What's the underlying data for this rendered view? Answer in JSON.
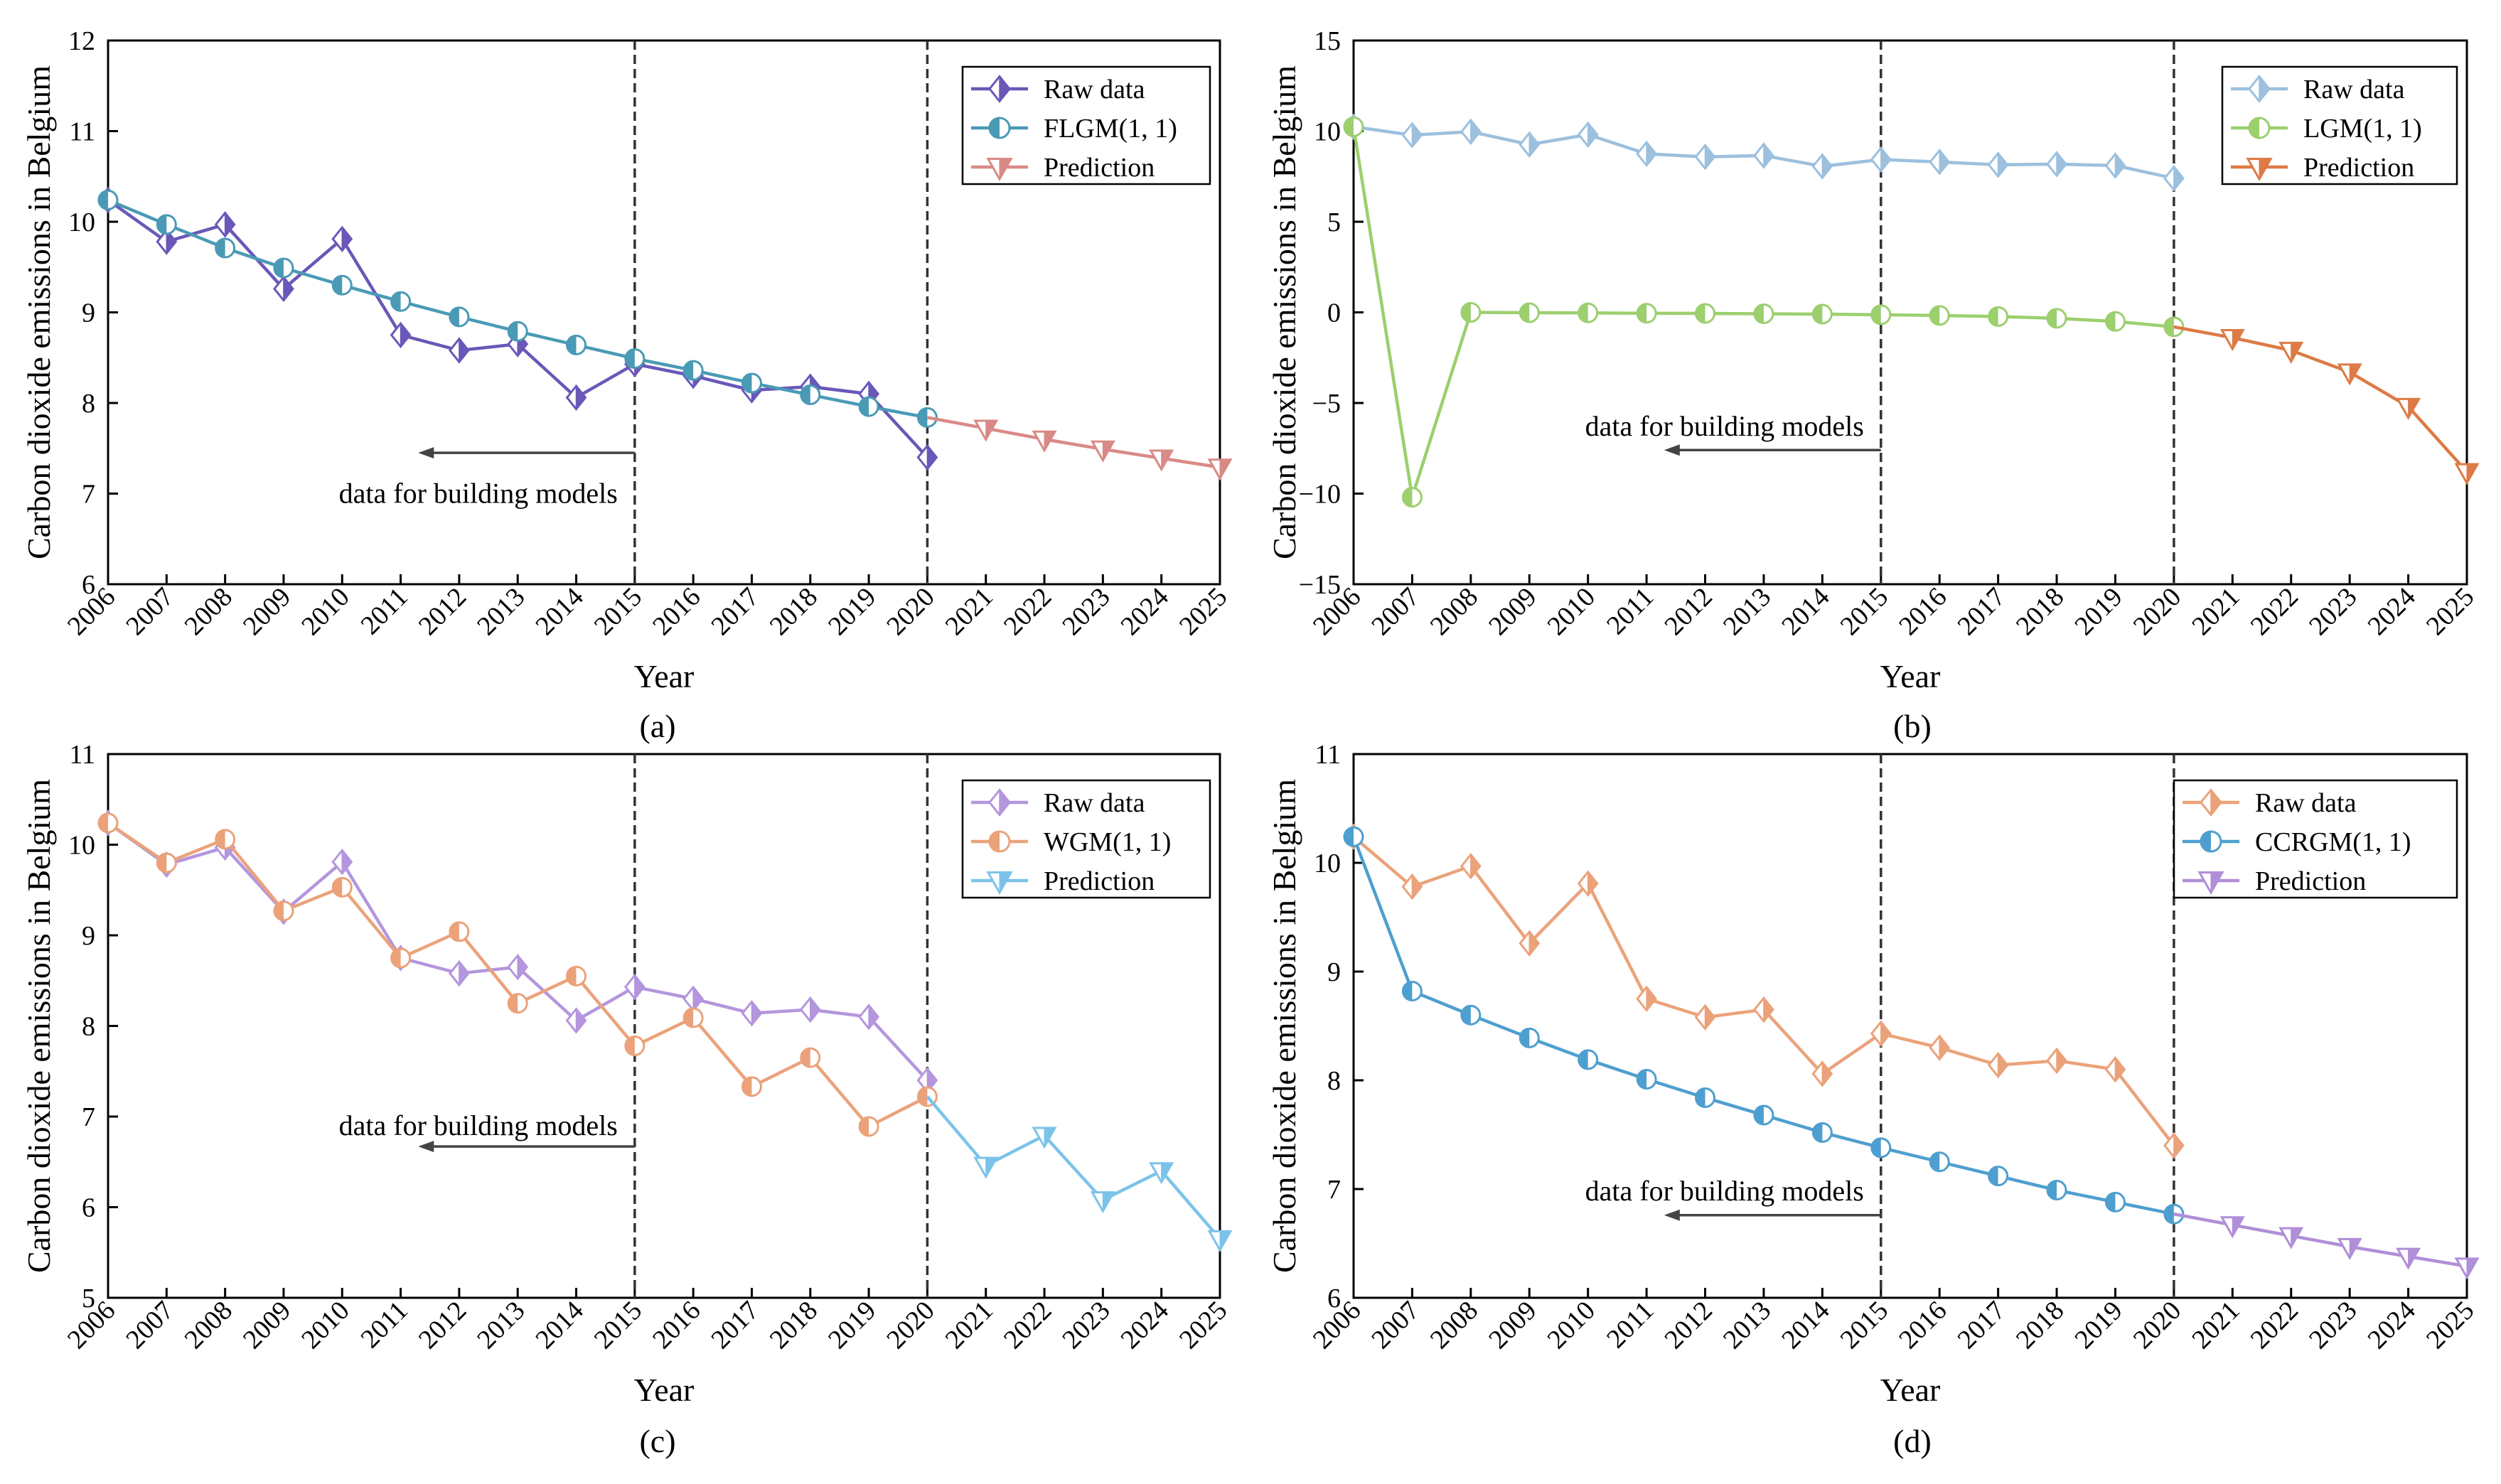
{
  "figure": {
    "panel_labels": [
      "(a)",
      "(b)",
      "(c)",
      "(d)"
    ],
    "annotation": "data for building models"
  },
  "colors": {
    "raw_a": "#6a57b8",
    "flgm": "#4a9ab5",
    "pred_a": "#d98a86",
    "raw_b": "#9cc0de",
    "lgm": "#9ccf6e",
    "pred_b": "#dd7a45",
    "raw_c": "#b496de",
    "wgm": "#eba27a",
    "pred_c": "#7cc3ea",
    "raw_d": "#eba27a",
    "ccrgm": "#4e9fcf",
    "pred_d": "#b08ed8",
    "axis": "#000000",
    "vline": "#333333",
    "arrow": "#444444"
  },
  "chart_data": [
    {
      "type": "line",
      "panel": "(a)",
      "xlabel": "Year",
      "ylabel": "Carbon dioxide emissions in Belgium",
      "xlim": [
        2006,
        2025
      ],
      "ylim": [
        6,
        12
      ],
      "yticks": [
        6,
        7,
        8,
        9,
        10,
        11,
        12
      ],
      "xticks": [
        "2006",
        "2007",
        "2008",
        "2009",
        "2010",
        "2011",
        "2012",
        "2013",
        "2014",
        "2015",
        "2016",
        "2017",
        "2018",
        "2019",
        "2020",
        "2021",
        "2022",
        "2023",
        "2024",
        "2025"
      ],
      "vlines": [
        2015,
        2020
      ],
      "annotation": {
        "text": "data for building models",
        "arrow_from": 2015,
        "arrow_to": 2011.3,
        "y": 7.45,
        "text_y": 7.0
      },
      "legend": "top-right",
      "series": [
        {
          "name": "Raw data",
          "marker": "diamond",
          "color": "raw_a",
          "x": [
            2006,
            2007,
            2008,
            2009,
            2010,
            2011,
            2012,
            2013,
            2014,
            2015,
            2016,
            2017,
            2018,
            2019,
            2020
          ],
          "values": [
            10.24,
            9.78,
            9.97,
            9.26,
            9.81,
            8.75,
            8.58,
            8.65,
            8.06,
            8.43,
            8.3,
            8.14,
            8.18,
            8.1,
            7.4
          ]
        },
        {
          "name": "FLGM(1, 1)",
          "marker": "circle",
          "color": "flgm",
          "x": [
            2006,
            2007,
            2008,
            2009,
            2010,
            2011,
            2012,
            2013,
            2014,
            2015,
            2016,
            2017,
            2018,
            2019,
            2020
          ],
          "values": [
            10.24,
            9.97,
            9.71,
            9.49,
            9.3,
            9.12,
            8.95,
            8.79,
            8.64,
            8.49,
            8.36,
            8.22,
            8.09,
            7.96,
            7.84
          ]
        },
        {
          "name": "Prediction",
          "marker": "triangle-down",
          "color": "pred_a",
          "x": [
            2020,
            2021,
            2022,
            2023,
            2024,
            2025
          ],
          "values": [
            7.84,
            7.72,
            7.6,
            7.49,
            7.39,
            7.29
          ]
        }
      ]
    },
    {
      "type": "line",
      "panel": "(b)",
      "xlabel": "Year",
      "ylabel": "Carbon dioxide emissions in Belgium",
      "xlim": [
        2006,
        2025
      ],
      "ylim": [
        -15,
        15
      ],
      "yticks": [
        -15,
        -10,
        -5,
        0,
        5,
        10,
        15
      ],
      "xticks": [
        "2006",
        "2007",
        "2008",
        "2009",
        "2010",
        "2011",
        "2012",
        "2013",
        "2014",
        "2015",
        "2016",
        "2017",
        "2018",
        "2019",
        "2020",
        "2021",
        "2022",
        "2023",
        "2024",
        "2025"
      ],
      "vlines": [
        2015,
        2020
      ],
      "annotation": {
        "text": "data for building models",
        "arrow_from": 2015,
        "arrow_to": 2011.3,
        "y": -7.6,
        "text_y": -6.3
      },
      "legend": "top-right",
      "series": [
        {
          "name": "Raw data",
          "marker": "diamond",
          "color": "raw_b",
          "x": [
            2006,
            2007,
            2008,
            2009,
            2010,
            2011,
            2012,
            2013,
            2014,
            2015,
            2016,
            2017,
            2018,
            2019,
            2020
          ],
          "values": [
            10.24,
            9.78,
            9.97,
            9.26,
            9.81,
            8.75,
            8.58,
            8.65,
            8.06,
            8.43,
            8.3,
            8.14,
            8.18,
            8.1,
            7.4
          ]
        },
        {
          "name": "LGM(1, 1)",
          "marker": "circle",
          "color": "lgm",
          "x": [
            2006,
            2007,
            2008,
            2009,
            2010,
            2011,
            2012,
            2013,
            2014,
            2015,
            2016,
            2017,
            2018,
            2019,
            2020
          ],
          "values": [
            10.24,
            -10.2,
            0.0,
            -0.02,
            -0.03,
            -0.05,
            -0.06,
            -0.08,
            -0.1,
            -0.13,
            -0.17,
            -0.23,
            -0.33,
            -0.5,
            -0.8
          ]
        },
        {
          "name": "Prediction",
          "marker": "triangle-down",
          "color": "pred_b",
          "x": [
            2020,
            2021,
            2022,
            2023,
            2024,
            2025
          ],
          "values": [
            -0.8,
            -1.4,
            -2.1,
            -3.3,
            -5.2,
            -8.8
          ]
        }
      ]
    },
    {
      "type": "line",
      "panel": "(c)",
      "xlabel": "Year",
      "ylabel": "Carbon dioxide emissions in Belgium",
      "xlim": [
        2006,
        2025
      ],
      "ylim": [
        5,
        11
      ],
      "yticks": [
        5,
        6,
        7,
        8,
        9,
        10,
        11
      ],
      "xticks": [
        "2006",
        "2007",
        "2008",
        "2009",
        "2010",
        "2011",
        "2012",
        "2013",
        "2014",
        "2015",
        "2016",
        "2017",
        "2018",
        "2019",
        "2020",
        "2021",
        "2022",
        "2023",
        "2024",
        "2025"
      ],
      "vlines": [
        2015,
        2020
      ],
      "annotation": {
        "text": "data for building models",
        "arrow_from": 2015,
        "arrow_to": 2011.3,
        "y": 6.67,
        "text_y": 6.9
      },
      "legend": "top-right",
      "series": [
        {
          "name": "Raw data",
          "marker": "diamond",
          "color": "raw_c",
          "x": [
            2006,
            2007,
            2008,
            2009,
            2010,
            2011,
            2012,
            2013,
            2014,
            2015,
            2016,
            2017,
            2018,
            2019,
            2020
          ],
          "values": [
            10.24,
            9.78,
            9.97,
            9.26,
            9.81,
            8.75,
            8.58,
            8.65,
            8.06,
            8.43,
            8.3,
            8.14,
            8.18,
            8.1,
            7.4
          ]
        },
        {
          "name": "WGM(1, 1)",
          "marker": "circle",
          "color": "wgm",
          "x": [
            2006,
            2007,
            2008,
            2009,
            2010,
            2011,
            2012,
            2013,
            2014,
            2015,
            2016,
            2017,
            2018,
            2019,
            2020
          ],
          "values": [
            10.24,
            9.8,
            10.06,
            9.27,
            9.53,
            8.75,
            9.04,
            8.25,
            8.55,
            7.78,
            8.09,
            7.33,
            7.65,
            6.89,
            7.22
          ]
        },
        {
          "name": "Prediction",
          "marker": "triangle-down",
          "color": "pred_c",
          "x": [
            2020,
            2021,
            2022,
            2023,
            2024,
            2025
          ],
          "values": [
            7.22,
            6.46,
            6.79,
            6.08,
            6.4,
            5.65
          ]
        }
      ]
    },
    {
      "type": "line",
      "panel": "(d)",
      "xlabel": "Year",
      "ylabel": "Carbon dioxide emissions in Belgium",
      "xlim": [
        2006,
        2025
      ],
      "ylim": [
        6,
        11
      ],
      "yticks": [
        6,
        7,
        8,
        9,
        10,
        11
      ],
      "xticks": [
        "2006",
        "2007",
        "2008",
        "2009",
        "2010",
        "2011",
        "2012",
        "2013",
        "2014",
        "2015",
        "2016",
        "2017",
        "2018",
        "2019",
        "2020",
        "2021",
        "2022",
        "2023",
        "2024",
        "2025"
      ],
      "vlines": [
        2015,
        2020
      ],
      "annotation": {
        "text": "data for building models",
        "arrow_from": 2015,
        "arrow_to": 2011.3,
        "y": 6.76,
        "text_y": 6.98
      },
      "legend": "top-right",
      "series": [
        {
          "name": "Raw data",
          "marker": "diamond",
          "color": "raw_d",
          "x": [
            2006,
            2007,
            2008,
            2009,
            2010,
            2011,
            2012,
            2013,
            2014,
            2015,
            2016,
            2017,
            2018,
            2019,
            2020
          ],
          "values": [
            10.24,
            9.78,
            9.97,
            9.26,
            9.81,
            8.75,
            8.58,
            8.65,
            8.06,
            8.43,
            8.3,
            8.14,
            8.18,
            8.1,
            7.4
          ]
        },
        {
          "name": "CCRGM(1, 1)",
          "marker": "circle",
          "color": "ccrgm",
          "x": [
            2006,
            2007,
            2008,
            2009,
            2010,
            2011,
            2012,
            2013,
            2014,
            2015,
            2016,
            2017,
            2018,
            2019,
            2020
          ],
          "values": [
            10.24,
            8.82,
            8.6,
            8.39,
            8.19,
            8.01,
            7.84,
            7.68,
            7.52,
            7.38,
            7.25,
            7.12,
            6.99,
            6.88,
            6.77
          ]
        },
        {
          "name": "Prediction",
          "marker": "triangle-down",
          "color": "pred_d",
          "x": [
            2020,
            2021,
            2022,
            2023,
            2024,
            2025
          ],
          "values": [
            6.77,
            6.67,
            6.57,
            6.47,
            6.38,
            6.29
          ]
        }
      ]
    }
  ]
}
